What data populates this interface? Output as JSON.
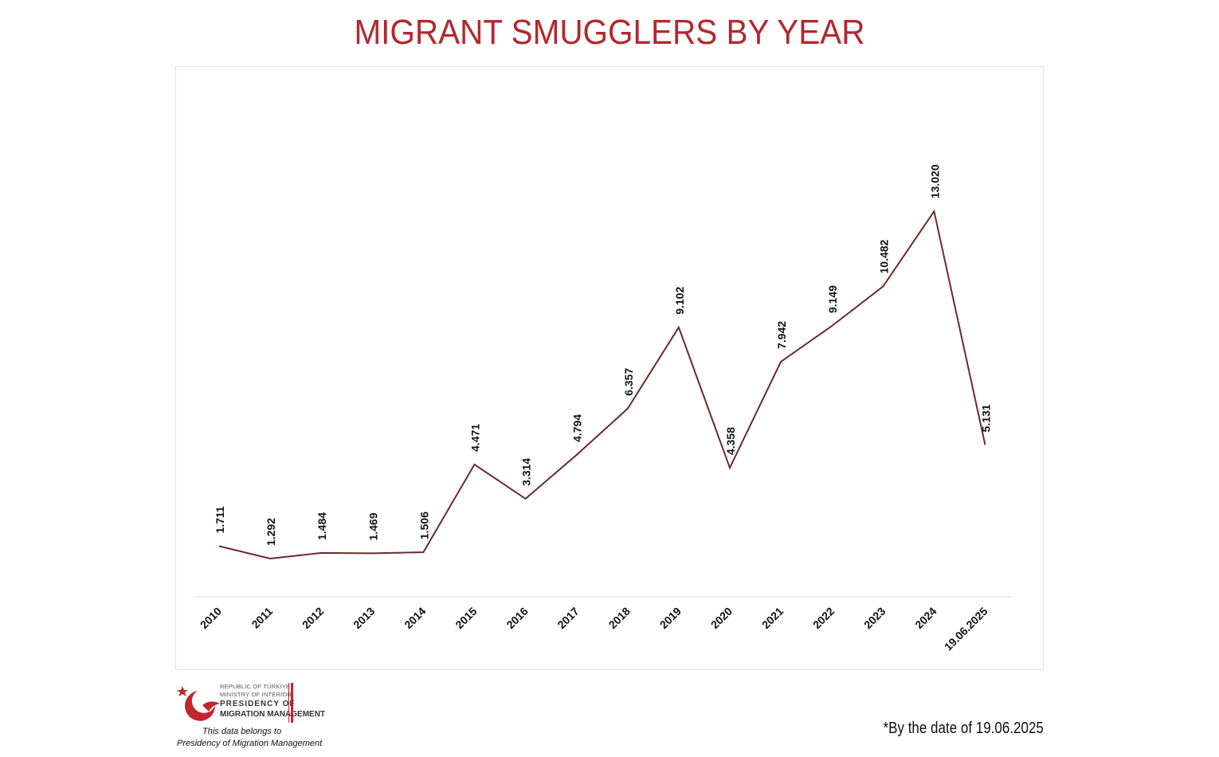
{
  "title": "MIGRANT SMUGGLERS BY YEAR",
  "chart_data": {
    "type": "line",
    "title": "MIGRANT SMUGGLERS BY YEAR",
    "categories": [
      "2010",
      "2011",
      "2012",
      "2013",
      "2014",
      "2015",
      "2016",
      "2017",
      "2018",
      "2019",
      "2020",
      "2021",
      "2022",
      "2023",
      "2024",
      "19.06.2025"
    ],
    "values": [
      1711,
      1292,
      1484,
      1469,
      1506,
      4471,
      3314,
      4794,
      6357,
      9102,
      4358,
      7942,
      9149,
      10482,
      13020,
      5131
    ],
    "labels": [
      "1.711",
      "1.292",
      "1.484",
      "1.469",
      "1.506",
      "4.471",
      "3.314",
      "4.794",
      "6.357",
      "9.102",
      "4.358",
      "7.942",
      "9.149",
      "10.482",
      "13.020",
      "5.131"
    ],
    "xlabel": "",
    "ylabel": "",
    "ylim": [
      0,
      15000
    ],
    "line_color": "#6b2a2a",
    "grid": false,
    "legend": "none"
  },
  "logo": {
    "line1": "REPUBLIC OF TÜRKIYE",
    "line2": "MINISTRY OF INTERIOR",
    "line3": "PRESIDENCY OF",
    "line4": "MIGRATION MANAGEMENT",
    "note1": "This data belongs to",
    "note2": "Presidency of Migration Management",
    "color": "#c0272d"
  },
  "footnote": "*By the date of 19.06.2025"
}
